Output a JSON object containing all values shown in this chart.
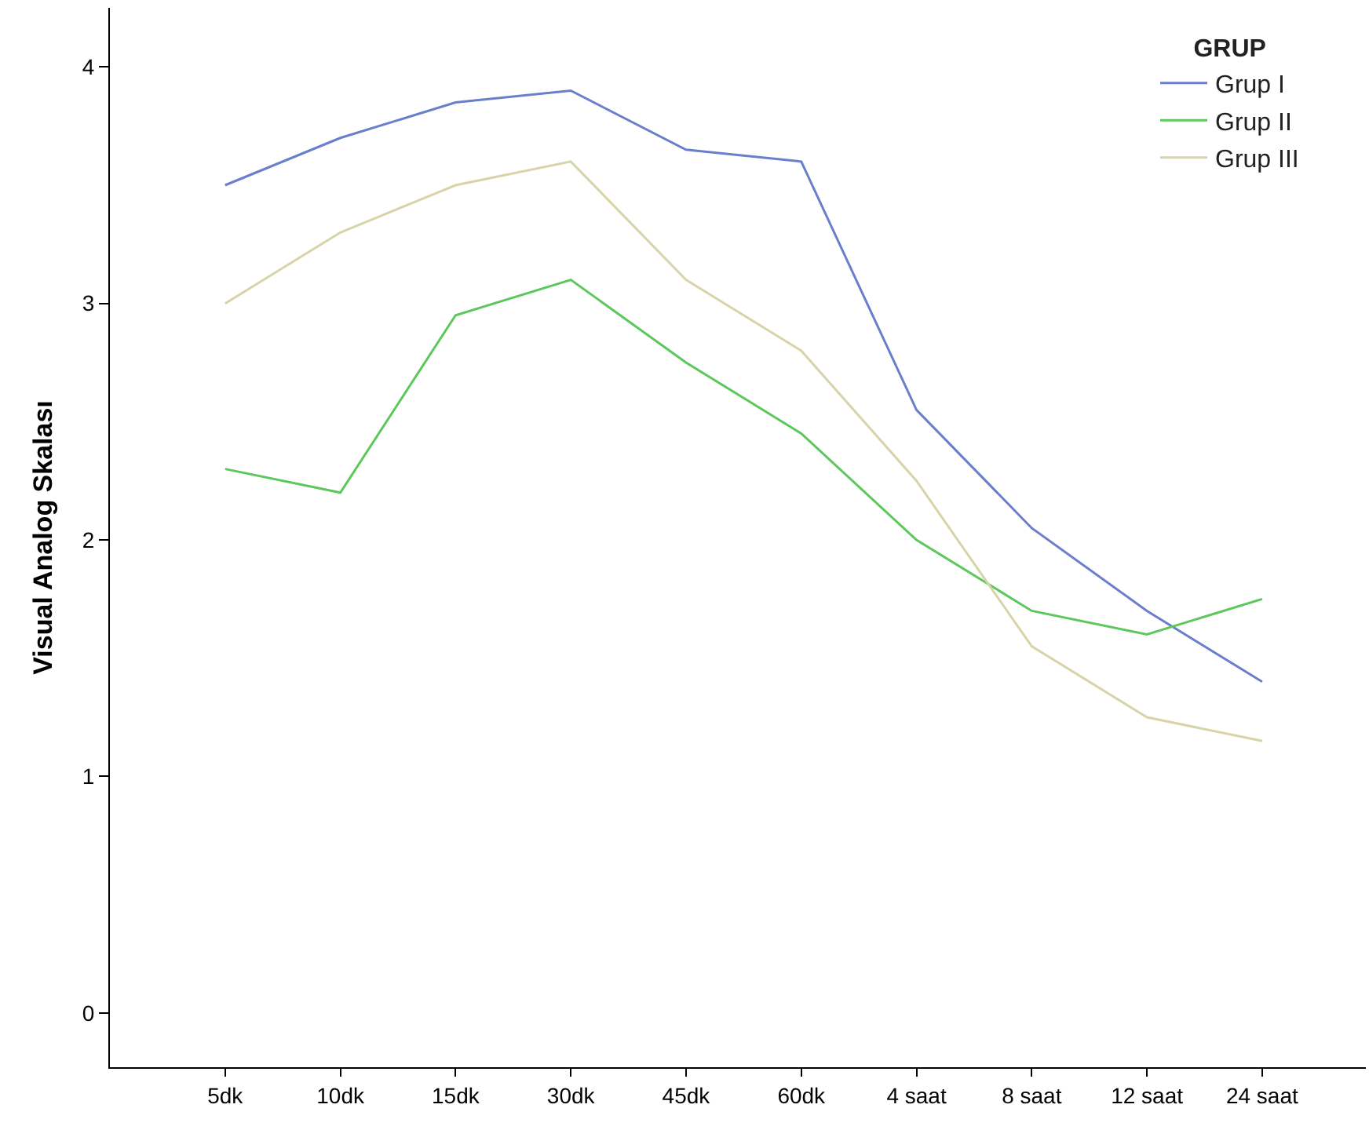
{
  "chart_data": {
    "type": "line",
    "ylabel": "Visual Analog Skalası",
    "legend_title": "GRUP",
    "legend": "top right",
    "grid": false,
    "marker": "none",
    "line_style": "solid",
    "categories": [
      "5dk",
      "10dk",
      "15dk",
      "30dk",
      "45dk",
      "60dk",
      "4 saat",
      "8 saat",
      "12 saat",
      "24 saat"
    ],
    "ylim": [
      -0.23,
      4.25
    ],
    "yticks": [
      0,
      1,
      2,
      3,
      4
    ],
    "series": [
      {
        "name": "Grup I",
        "color": "#6a7fcb",
        "values": [
          3.5,
          3.7,
          3.85,
          3.9,
          3.65,
          3.6,
          2.55,
          2.05,
          1.7,
          1.4
        ]
      },
      {
        "name": "Grup II",
        "color": "#5cc85c",
        "values": [
          2.3,
          2.2,
          2.95,
          3.1,
          2.75,
          2.45,
          2.0,
          1.7,
          1.6,
          1.75
        ]
      },
      {
        "name": "Grup III",
        "color": "#d8d3a8",
        "values": [
          3.0,
          3.3,
          3.5,
          3.6,
          3.1,
          2.8,
          2.25,
          1.55,
          1.25,
          1.15
        ]
      }
    ]
  }
}
